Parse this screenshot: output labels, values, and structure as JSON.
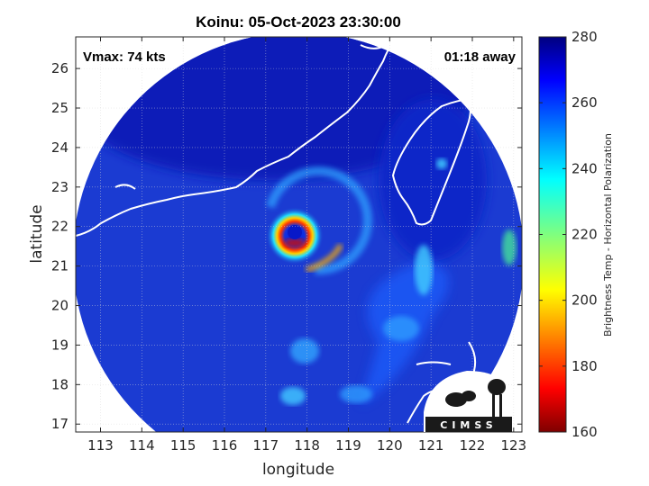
{
  "chart_data": {
    "type": "heatmap",
    "title": "Koinu: 05-Oct-2023 23:30:00",
    "xlabel": "longitude",
    "ylabel": "latitude",
    "xlim": [
      112.4,
      123.2
    ],
    "ylim": [
      16.8,
      26.8
    ],
    "xticks": [
      113,
      114,
      115,
      116,
      117,
      118,
      119,
      120,
      121,
      122,
      123
    ],
    "yticks": [
      17,
      18,
      19,
      20,
      21,
      22,
      23,
      24,
      25,
      26
    ],
    "grid": true,
    "annotations": {
      "vmax": "Vmax: 74 kts",
      "time_away": "01:18 away"
    },
    "storm_center": {
      "lon": 117.75,
      "lat": 21.95
    },
    "colorbar": {
      "label": "Brightness Temp - Horizontal Polarization",
      "range": [
        160,
        280
      ],
      "ticks": [
        160,
        180,
        200,
        220,
        240,
        260,
        280
      ],
      "colormap": "jet"
    },
    "logo_text": "CIMSS"
  },
  "colors": {
    "background_field": "#1a3ad0",
    "coastline": "#ffffff",
    "grid": "#d9d9d9"
  }
}
